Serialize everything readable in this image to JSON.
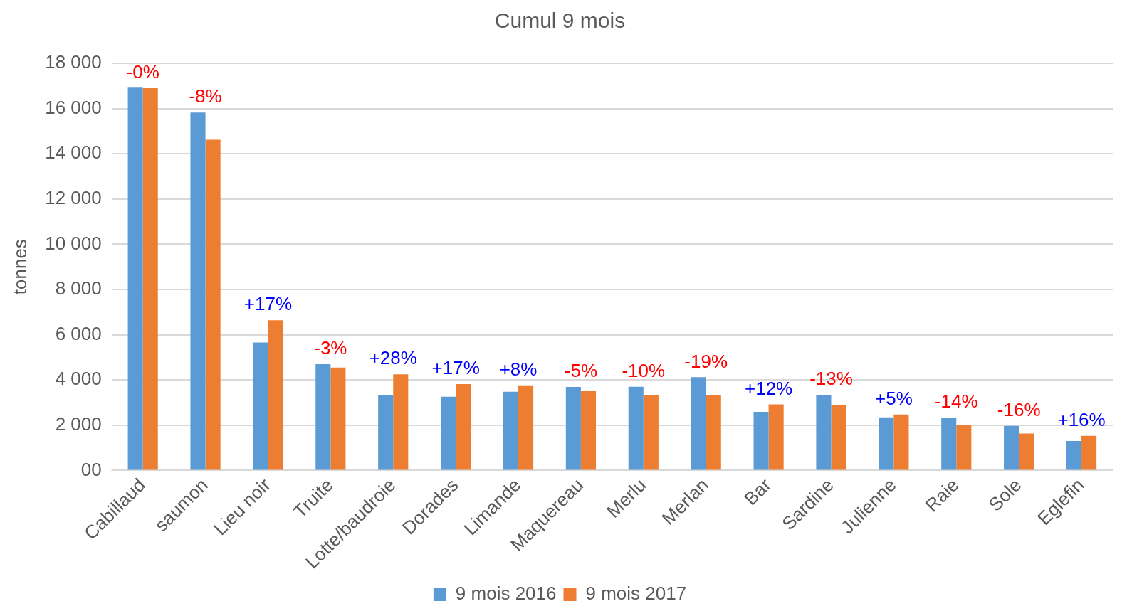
{
  "chart_data": {
    "type": "bar",
    "title": "Cumul 9 mois",
    "ylabel": "tonnes",
    "categories": [
      "Cabillaud",
      "saumon",
      "Lieu noir",
      "Truite",
      "Lotte/baudroie",
      "Dorades",
      "Limande",
      "Maquereau",
      "Merlu",
      "Merlan",
      "Bar",
      "Sardine",
      "Julienne",
      "Raie",
      "Sole",
      "Eglefin"
    ],
    "series": [
      {
        "name": "9 mois 2016",
        "color": "#5b9bd5",
        "values": [
          16920,
          15820,
          5660,
          4700,
          3330,
          3260,
          3480,
          3690,
          3700,
          4120,
          2590,
          3340,
          2350,
          2330,
          1970,
          1300
        ]
      },
      {
        "name": "9 mois 2017",
        "color": "#ed7d31",
        "values": [
          16900,
          14620,
          6640,
          4550,
          4250,
          3820,
          3760,
          3500,
          3340,
          3340,
          2920,
          2900,
          2470,
          2000,
          1630,
          1530
        ]
      }
    ],
    "ylim": [
      0,
      18000
    ],
    "yticks": [
      {
        "value": 0,
        "label": "00"
      },
      {
        "value": 2000,
        "label": "2 000"
      },
      {
        "value": 4000,
        "label": "4 000"
      },
      {
        "value": 6000,
        "label": "6 000"
      },
      {
        "value": 8000,
        "label": "8 000"
      },
      {
        "value": 10000,
        "label": "10 000"
      },
      {
        "value": 12000,
        "label": "12 000"
      },
      {
        "value": 14000,
        "label": "14 000"
      },
      {
        "value": 16000,
        "label": "16 000"
      },
      {
        "value": 18000,
        "label": "18 000"
      }
    ],
    "grid": "y",
    "legend": "bottom",
    "annotations": [
      "-0%",
      "-8%",
      "+17%",
      "-3%",
      "+28%",
      "+17%",
      "+8%",
      "-5%",
      "-10%",
      "-19%",
      "+12%",
      "-13%",
      "+5%",
      "-14%",
      "-16%",
      "+16%"
    ]
  }
}
